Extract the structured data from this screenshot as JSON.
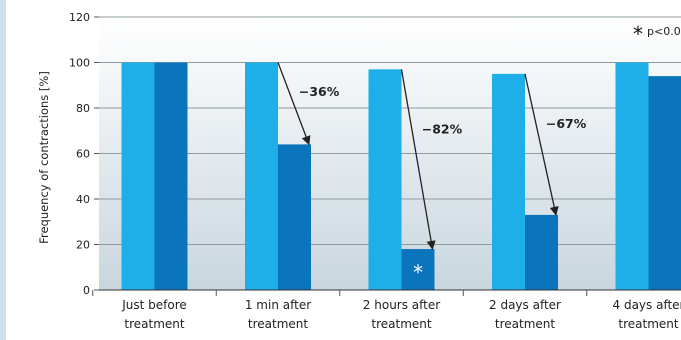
{
  "chart_data": {
    "type": "bar",
    "title": "",
    "ylabel": "Frequency of contractions [%]",
    "xlabel": "",
    "ylim": [
      0,
      120
    ],
    "yticks": [
      0,
      20,
      40,
      60,
      80,
      100,
      120
    ],
    "grid": true,
    "categories": [
      [
        "Just before",
        "treatment"
      ],
      [
        "1 min after",
        "treatment"
      ],
      [
        "2 hours after",
        "treatment"
      ],
      [
        "2 days after",
        "treatment"
      ],
      [
        "4 days after",
        "treatment"
      ]
    ],
    "series": [
      {
        "values": [
          100,
          100,
          97,
          95,
          100
        ],
        "color": "#1eaee8"
      },
      {
        "values": [
          100,
          64,
          18,
          33,
          94
        ],
        "color": "#0a75bd"
      }
    ],
    "annotations": [
      {
        "category": 1,
        "text": "−36%"
      },
      {
        "category": 2,
        "text": "−82%"
      },
      {
        "category": 3,
        "text": "−67%"
      }
    ],
    "significance_marks": [
      {
        "category": 2,
        "series": 1,
        "symbol": "*"
      }
    ],
    "legend": {
      "symbol": "*",
      "text": "p<0.0",
      "position": "top-right"
    }
  }
}
